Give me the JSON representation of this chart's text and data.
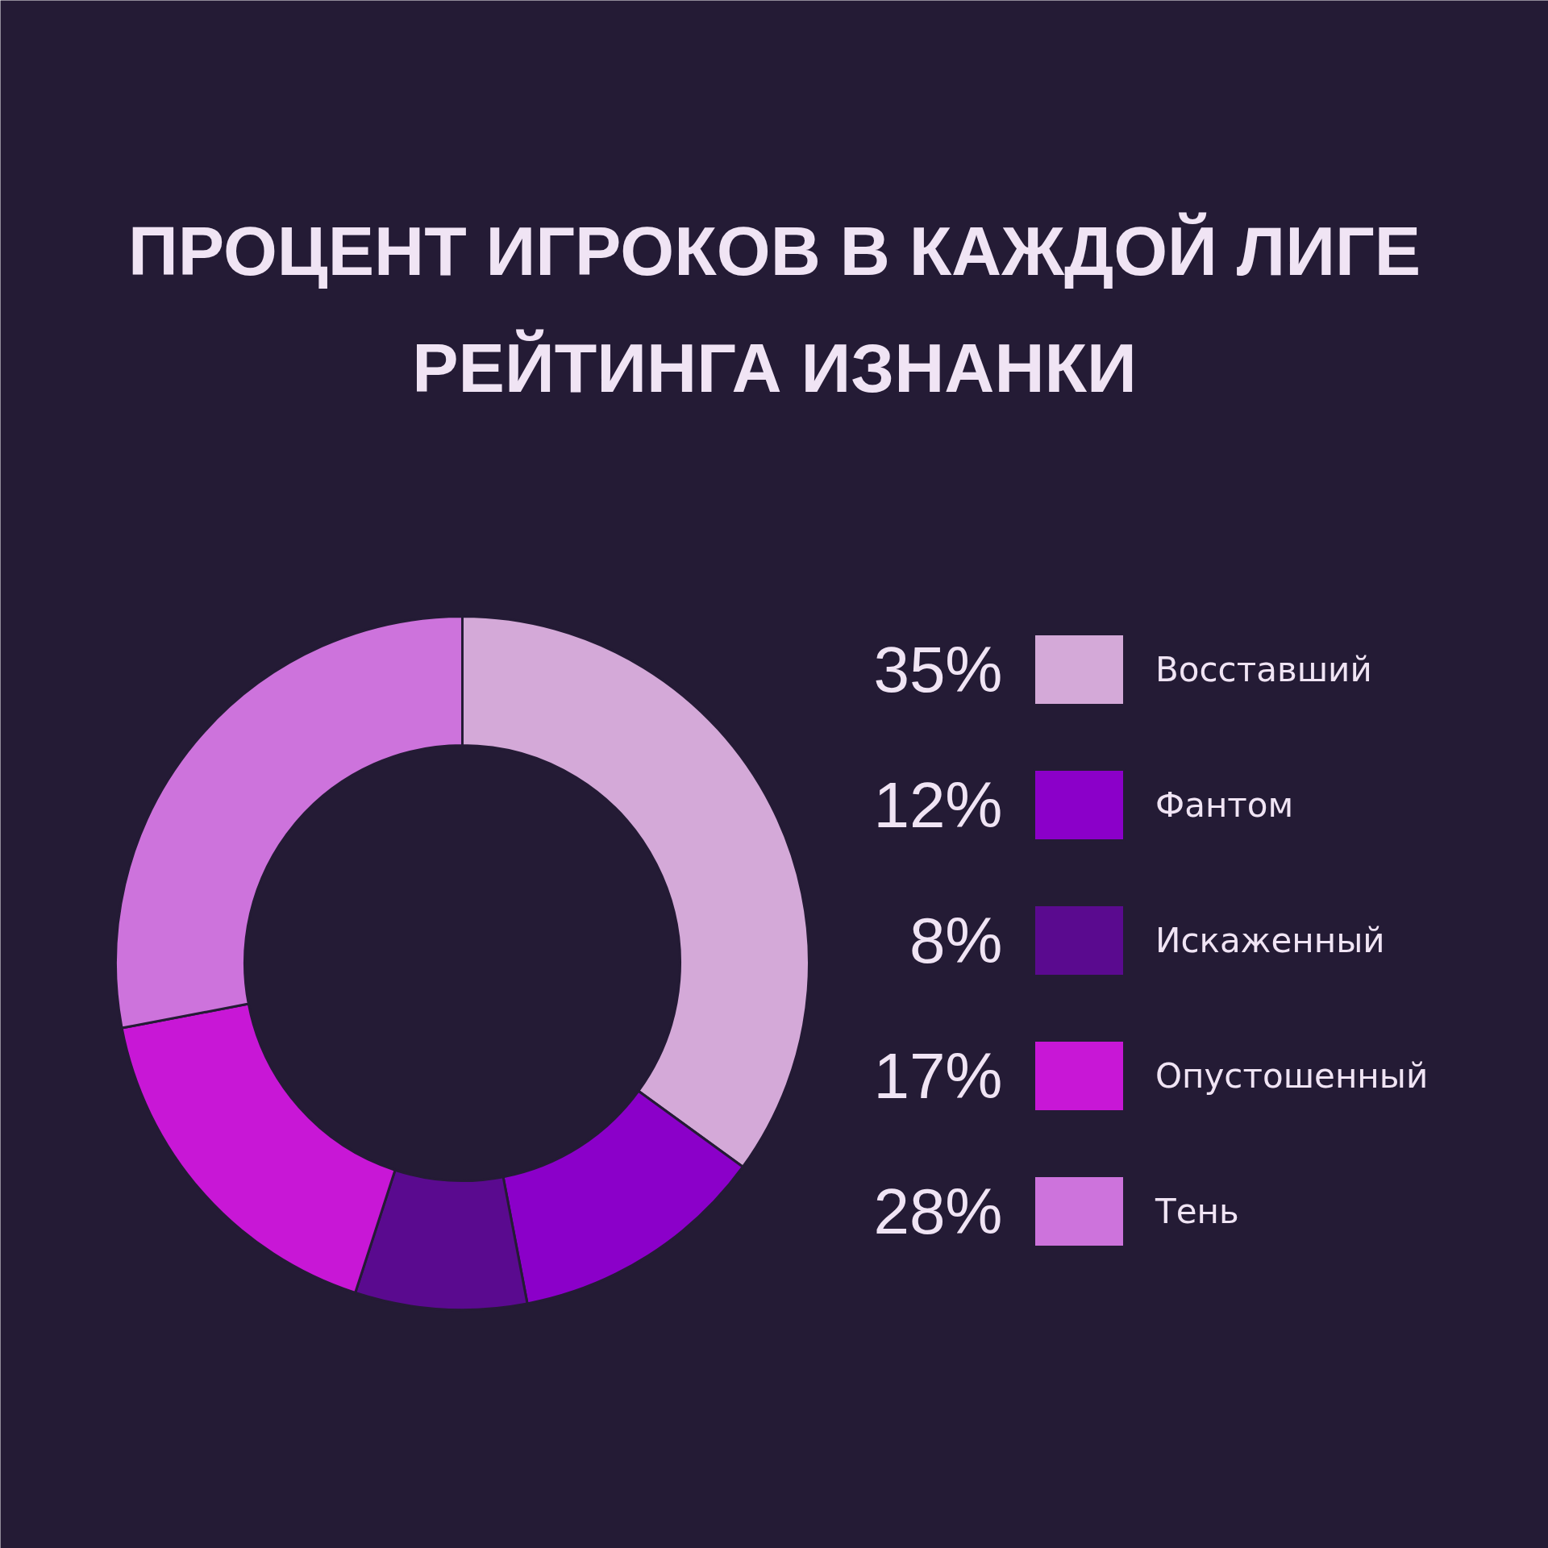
{
  "chart_data": {
    "type": "donut",
    "title": "ПРОЦЕНТ ИГРОКОВ В КАЖДОЙ ЛИГЕ РЕЙТИНГА ИЗНАНКИ",
    "categories": [
      "Восставший",
      "Фантом",
      "Искаженный",
      "Опустошенный",
      "Тень"
    ],
    "values": [
      35,
      12,
      8,
      17,
      28
    ],
    "value_labels": [
      "35%",
      "12%",
      "8%",
      "17%",
      "28%"
    ],
    "colors": [
      "#d4a9d8",
      "#8b00c9",
      "#5a0a8f",
      "#c817d6",
      "#cd73dc"
    ],
    "legend": "right"
  }
}
